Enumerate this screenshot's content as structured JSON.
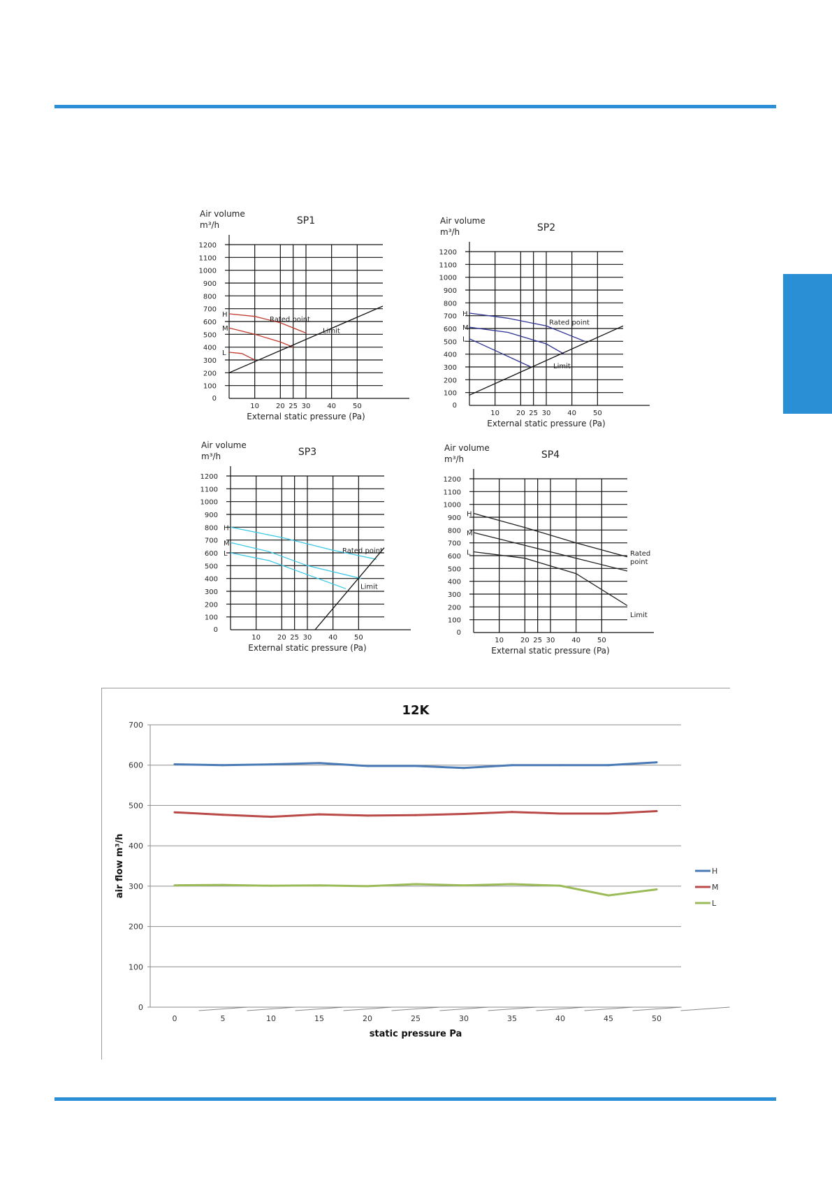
{
  "colors": {
    "accent": "#2b8fd6",
    "H": "#4a7ab5",
    "M": "#b94a48",
    "L": "#9bbb59",
    "sp1": "#c0392b",
    "sp2": "#2e3192",
    "sp3": "#3cc8e6",
    "sp4": "#222222"
  },
  "small_charts": [
    {
      "title": "SP1",
      "ylabel1": "Air volume",
      "ylabel2": "m³/h",
      "xlabel": "External static pressure (Pa)",
      "rated_label": "Rated point",
      "limit_label": "Limit",
      "level_labels": [
        "H",
        "M",
        "L"
      ]
    },
    {
      "title": "SP2",
      "ylabel1": "Air volume",
      "ylabel2": "m³/h",
      "xlabel": "External static pressure (Pa)",
      "rated_label": "Rated point",
      "limit_label": "Limit",
      "level_labels": [
        "H",
        "M",
        "L"
      ]
    },
    {
      "title": "SP3",
      "ylabel1": "Air volume",
      "ylabel2": "m³/h",
      "xlabel": "External static pressure (Pa)",
      "rated_label": "Rated point",
      "limit_label": "Limit",
      "level_labels": [
        "H",
        "M",
        "L"
      ]
    },
    {
      "title": "SP4",
      "ylabel1": "Air volume",
      "ylabel2": "m³/h",
      "xlabel": "External static pressure (Pa)",
      "rated_label": "Rated point",
      "limit_label": "Limit",
      "level_labels": [
        "H",
        "M",
        "L"
      ]
    }
  ],
  "chart_data": [
    {
      "type": "line",
      "title": "SP1",
      "xlabel": "External static pressure (Pa)",
      "ylabel": "Air volume m³/h",
      "x_ticks": [
        10,
        20,
        25,
        30,
        40,
        50
      ],
      "y_ticks": [
        0,
        100,
        200,
        300,
        400,
        500,
        600,
        700,
        800,
        900,
        1000,
        1100,
        1200
      ],
      "xlim": [
        0,
        60
      ],
      "ylim": [
        0,
        1200
      ],
      "grid": true,
      "series": [
        {
          "name": "H",
          "x": [
            0,
            10,
            20,
            30
          ],
          "y": [
            660,
            640,
            590,
            510
          ]
        },
        {
          "name": "M",
          "x": [
            0,
            10,
            20,
            25
          ],
          "y": [
            550,
            500,
            440,
            400
          ]
        },
        {
          "name": "L",
          "x": [
            0,
            5,
            10
          ],
          "y": [
            360,
            350,
            300
          ]
        },
        {
          "name": "Limit",
          "x": [
            0,
            60
          ],
          "y": [
            200,
            720
          ]
        }
      ]
    },
    {
      "type": "line",
      "title": "SP2",
      "xlabel": "External static pressure (Pa)",
      "ylabel": "Air volume m³/h",
      "x_ticks": [
        10,
        20,
        25,
        30,
        40,
        50
      ],
      "y_ticks": [
        0,
        100,
        200,
        300,
        400,
        500,
        600,
        700,
        800,
        900,
        1000,
        1100,
        1200
      ],
      "xlim": [
        0,
        60
      ],
      "ylim": [
        0,
        1200
      ],
      "grid": true,
      "series": [
        {
          "name": "H",
          "x": [
            0,
            15,
            30,
            45
          ],
          "y": [
            720,
            680,
            620,
            500
          ]
        },
        {
          "name": "M",
          "x": [
            0,
            15,
            30,
            37
          ],
          "y": [
            610,
            570,
            480,
            400
          ]
        },
        {
          "name": "L",
          "x": [
            0,
            12,
            24
          ],
          "y": [
            520,
            410,
            300
          ]
        },
        {
          "name": "Limit",
          "x": [
            0,
            60
          ],
          "y": [
            80,
            620
          ]
        }
      ]
    },
    {
      "type": "line",
      "title": "SP3",
      "xlabel": "External static pressure (Pa)",
      "ylabel": "Air volume m³/h",
      "x_ticks": [
        10,
        20,
        25,
        30,
        40,
        50
      ],
      "y_ticks": [
        0,
        100,
        200,
        300,
        400,
        500,
        600,
        700,
        800,
        900,
        1000,
        1100,
        1200
      ],
      "xlim": [
        0,
        60
      ],
      "ylim": [
        0,
        1200
      ],
      "grid": true,
      "series": [
        {
          "name": "H",
          "x": [
            0,
            20,
            40,
            57
          ],
          "y": [
            800,
            720,
            620,
            550
          ]
        },
        {
          "name": "M",
          "x": [
            0,
            15,
            30,
            51
          ],
          "y": [
            680,
            610,
            500,
            400
          ]
        },
        {
          "name": "L",
          "x": [
            0,
            15,
            30,
            45
          ],
          "y": [
            600,
            540,
            430,
            320
          ]
        },
        {
          "name": "Limit",
          "x": [
            33,
            60
          ],
          "y": [
            0,
            640
          ]
        }
      ]
    },
    {
      "type": "line",
      "title": "SP4",
      "xlabel": "External static pressure (Pa)",
      "ylabel": "Air volume m³/h",
      "x_ticks": [
        10,
        20,
        25,
        30,
        40,
        50
      ],
      "y_ticks": [
        0,
        100,
        200,
        300,
        400,
        500,
        600,
        700,
        800,
        900,
        1000,
        1100,
        1200
      ],
      "xlim": [
        0,
        60
      ],
      "ylim": [
        0,
        1200
      ],
      "grid": true,
      "series": [
        {
          "name": "H",
          "x": [
            0,
            20,
            40,
            60
          ],
          "y": [
            930,
            820,
            700,
            590
          ]
        },
        {
          "name": "M",
          "x": [
            0,
            20,
            40,
            60
          ],
          "y": [
            780,
            680,
            580,
            480
          ]
        },
        {
          "name": "L",
          "x": [
            0,
            20,
            40,
            60
          ],
          "y": [
            630,
            580,
            460,
            210
          ]
        }
      ]
    },
    {
      "type": "line",
      "title": "12K",
      "xlabel": "static pressure  Pa",
      "ylabel": "air flow m³/h",
      "categories": [
        "0",
        "5",
        "10",
        "15",
        "20",
        "25",
        "30",
        "35",
        "40",
        "45",
        "50"
      ],
      "ylim": [
        0,
        700
      ],
      "y_ticks": [
        0,
        100,
        200,
        300,
        400,
        500,
        600,
        700
      ],
      "grid": true,
      "legend": "right",
      "series": [
        {
          "name": "H",
          "values": [
            602,
            600,
            602,
            605,
            598,
            598,
            593,
            600,
            600,
            600,
            607
          ]
        },
        {
          "name": "M",
          "values": [
            483,
            477,
            472,
            478,
            475,
            476,
            479,
            484,
            480,
            480,
            486
          ]
        },
        {
          "name": "L",
          "values": [
            302,
            303,
            301,
            302,
            300,
            305,
            302,
            305,
            301,
            277,
            292
          ]
        }
      ]
    }
  ]
}
